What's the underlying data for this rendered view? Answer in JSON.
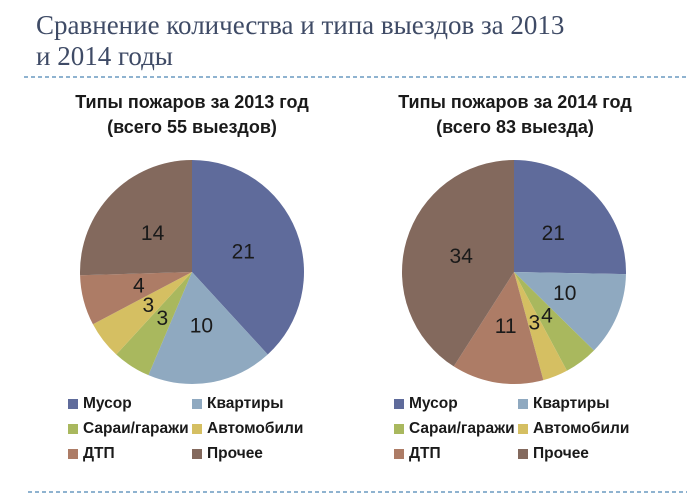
{
  "page": {
    "title_line1": "Сравнение количества и типа выездов за 2013",
    "title_line2": "и 2014 годы",
    "title_color": "#3F4B66",
    "separator_color": "#8FB3D0",
    "background": "#FFFFFF"
  },
  "chart_data": [
    {
      "type": "pie",
      "title": "Типы пожаров за 2013 год",
      "subtitle": "(всего 55 выездов)",
      "total": 55,
      "categories": [
        "Мусор",
        "Квартиры",
        "Сараи/гаражи",
        "Автомобили",
        "ДТП",
        "Прочее"
      ],
      "values": [
        21,
        10,
        3,
        3,
        4,
        14
      ],
      "colors": [
        "#5F6B9B",
        "#8FA9C0",
        "#A9B85E",
        "#D5BF62",
        "#AD7C66",
        "#83695D"
      ],
      "data_labels": [
        "21",
        "10",
        "3",
        "3",
        "4",
        "14"
      ],
      "start_angle_deg": 0,
      "direction": "clockwise",
      "legend_position": "bottom"
    },
    {
      "type": "pie",
      "title": "Типы пожаров за 2014 год",
      "subtitle": "(всего 83 выезда)",
      "total": 83,
      "categories": [
        "Мусор",
        "Квартиры",
        "Сараи/гаражи",
        "Автомобили",
        "ДТП",
        "Прочее"
      ],
      "values": [
        21,
        10,
        4,
        3,
        11,
        34
      ],
      "colors": [
        "#5F6B9B",
        "#8FA9C0",
        "#A9B85E",
        "#D5BF62",
        "#AD7C66",
        "#83695D"
      ],
      "data_labels": [
        "21",
        "10",
        "4",
        "3",
        "11",
        "34"
      ],
      "start_angle_deg": 0,
      "direction": "clockwise",
      "legend_position": "bottom"
    }
  ]
}
